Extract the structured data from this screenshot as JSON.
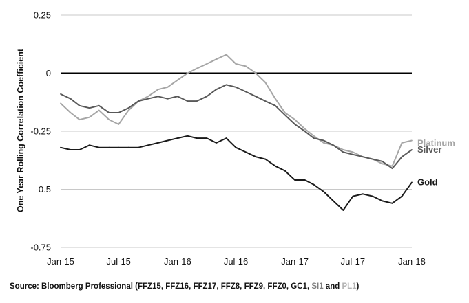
{
  "chart_data": {
    "type": "line",
    "ylabel": "One Year Rolling Correlation Coefficient",
    "ylim": [
      -0.75,
      0.25
    ],
    "yticks": [
      {
        "value": 0.25,
        "label": "0.25"
      },
      {
        "value": 0,
        "label": "0"
      },
      {
        "value": -0.25,
        "label": "-0.25"
      },
      {
        "value": -0.5,
        "label": "-0.5"
      },
      {
        "value": -0.75,
        "label": "-0.75"
      }
    ],
    "xlim": [
      "2015-01-01",
      "2018-01-01"
    ],
    "xticks": [
      {
        "date": "2015-01-01",
        "label": "Jan-15"
      },
      {
        "date": "2015-07-01",
        "label": "Jul-15"
      },
      {
        "date": "2016-01-01",
        "label": "Jan-16"
      },
      {
        "date": "2016-07-01",
        "label": "Jul-16"
      },
      {
        "date": "2017-01-01",
        "label": "Jan-17"
      },
      {
        "date": "2017-07-01",
        "label": "Jul-17"
      },
      {
        "date": "2018-01-01",
        "label": "Jan-18"
      }
    ],
    "grid": "horizontal",
    "series": [
      {
        "name": "Platinum",
        "color": "#a6a6a6",
        "points": [
          [
            "2015-01-01",
            -0.13
          ],
          [
            "2015-02-01",
            -0.17
          ],
          [
            "2015-03-01",
            -0.2
          ],
          [
            "2015-04-01",
            -0.19
          ],
          [
            "2015-05-01",
            -0.16
          ],
          [
            "2015-06-01",
            -0.2
          ],
          [
            "2015-07-01",
            -0.22
          ],
          [
            "2015-08-01",
            -0.16
          ],
          [
            "2015-09-01",
            -0.12
          ],
          [
            "2015-10-01",
            -0.1
          ],
          [
            "2015-11-01",
            -0.07
          ],
          [
            "2015-12-01",
            -0.06
          ],
          [
            "2016-01-01",
            -0.03
          ],
          [
            "2016-02-01",
            0.0
          ],
          [
            "2016-03-01",
            0.02
          ],
          [
            "2016-04-01",
            0.04
          ],
          [
            "2016-05-01",
            0.06
          ],
          [
            "2016-06-01",
            0.08
          ],
          [
            "2016-07-01",
            0.04
          ],
          [
            "2016-08-01",
            0.03
          ],
          [
            "2016-09-01",
            0.0
          ],
          [
            "2016-10-01",
            -0.04
          ],
          [
            "2016-11-01",
            -0.11
          ],
          [
            "2016-12-01",
            -0.17
          ],
          [
            "2017-01-01",
            -0.2
          ],
          [
            "2017-02-01",
            -0.24
          ],
          [
            "2017-03-01",
            -0.27
          ],
          [
            "2017-04-01",
            -0.3
          ],
          [
            "2017-05-01",
            -0.31
          ],
          [
            "2017-06-01",
            -0.33
          ],
          [
            "2017-07-01",
            -0.34
          ],
          [
            "2017-08-01",
            -0.36
          ],
          [
            "2017-09-01",
            -0.37
          ],
          [
            "2017-10-01",
            -0.39
          ],
          [
            "2017-11-01",
            -0.4
          ],
          [
            "2017-12-01",
            -0.3
          ],
          [
            "2018-01-01",
            -0.29
          ]
        ]
      },
      {
        "name": "Silver",
        "color": "#595959",
        "points": [
          [
            "2015-01-01",
            -0.09
          ],
          [
            "2015-02-01",
            -0.11
          ],
          [
            "2015-03-01",
            -0.14
          ],
          [
            "2015-04-01",
            -0.15
          ],
          [
            "2015-05-01",
            -0.14
          ],
          [
            "2015-06-01",
            -0.17
          ],
          [
            "2015-07-01",
            -0.17
          ],
          [
            "2015-08-01",
            -0.15
          ],
          [
            "2015-09-01",
            -0.12
          ],
          [
            "2015-10-01",
            -0.11
          ],
          [
            "2015-11-01",
            -0.1
          ],
          [
            "2015-12-01",
            -0.11
          ],
          [
            "2016-01-01",
            -0.1
          ],
          [
            "2016-02-01",
            -0.12
          ],
          [
            "2016-03-01",
            -0.12
          ],
          [
            "2016-04-01",
            -0.1
          ],
          [
            "2016-05-01",
            -0.07
          ],
          [
            "2016-06-01",
            -0.05
          ],
          [
            "2016-07-01",
            -0.06
          ],
          [
            "2016-08-01",
            -0.08
          ],
          [
            "2016-09-01",
            -0.1
          ],
          [
            "2016-10-01",
            -0.12
          ],
          [
            "2016-11-01",
            -0.14
          ],
          [
            "2016-12-01",
            -0.18
          ],
          [
            "2017-01-01",
            -0.22
          ],
          [
            "2017-02-01",
            -0.25
          ],
          [
            "2017-03-01",
            -0.28
          ],
          [
            "2017-04-01",
            -0.29
          ],
          [
            "2017-05-01",
            -0.31
          ],
          [
            "2017-06-01",
            -0.34
          ],
          [
            "2017-07-01",
            -0.35
          ],
          [
            "2017-08-01",
            -0.36
          ],
          [
            "2017-09-01",
            -0.37
          ],
          [
            "2017-10-01",
            -0.38
          ],
          [
            "2017-11-01",
            -0.41
          ],
          [
            "2017-12-01",
            -0.36
          ],
          [
            "2018-01-01",
            -0.33
          ]
        ]
      },
      {
        "name": "Gold",
        "color": "#1a1a1a",
        "points": [
          [
            "2015-01-01",
            -0.32
          ],
          [
            "2015-02-01",
            -0.33
          ],
          [
            "2015-03-01",
            -0.33
          ],
          [
            "2015-04-01",
            -0.31
          ],
          [
            "2015-05-01",
            -0.32
          ],
          [
            "2015-06-01",
            -0.32
          ],
          [
            "2015-07-01",
            -0.32
          ],
          [
            "2015-08-01",
            -0.32
          ],
          [
            "2015-09-01",
            -0.32
          ],
          [
            "2015-10-01",
            -0.31
          ],
          [
            "2015-11-01",
            -0.3
          ],
          [
            "2015-12-01",
            -0.29
          ],
          [
            "2016-01-01",
            -0.28
          ],
          [
            "2016-02-01",
            -0.27
          ],
          [
            "2016-03-01",
            -0.28
          ],
          [
            "2016-04-01",
            -0.28
          ],
          [
            "2016-05-01",
            -0.3
          ],
          [
            "2016-06-01",
            -0.28
          ],
          [
            "2016-07-01",
            -0.32
          ],
          [
            "2016-08-01",
            -0.34
          ],
          [
            "2016-09-01",
            -0.36
          ],
          [
            "2016-10-01",
            -0.37
          ],
          [
            "2016-11-01",
            -0.4
          ],
          [
            "2016-12-01",
            -0.42
          ],
          [
            "2017-01-01",
            -0.46
          ],
          [
            "2017-02-01",
            -0.46
          ],
          [
            "2017-03-01",
            -0.48
          ],
          [
            "2017-04-01",
            -0.51
          ],
          [
            "2017-05-01",
            -0.55
          ],
          [
            "2017-06-01",
            -0.59
          ],
          [
            "2017-07-01",
            -0.53
          ],
          [
            "2017-08-01",
            -0.52
          ],
          [
            "2017-09-01",
            -0.53
          ],
          [
            "2017-10-01",
            -0.55
          ],
          [
            "2017-11-01",
            -0.56
          ],
          [
            "2017-12-01",
            -0.53
          ],
          [
            "2018-01-01",
            -0.47
          ]
        ]
      }
    ]
  },
  "source": {
    "prefix": "Source: Bloomberg Professional (FFZ15, FFZ16, FFZ17, FFZ8, FFZ9, FFZ0, GC1, ",
    "silver_code": "SI1",
    "middle": " and ",
    "platinum_code": "PL1",
    "suffix": ")",
    "silver_color": "#7f7f7f",
    "platinum_color": "#b3b3b3"
  }
}
